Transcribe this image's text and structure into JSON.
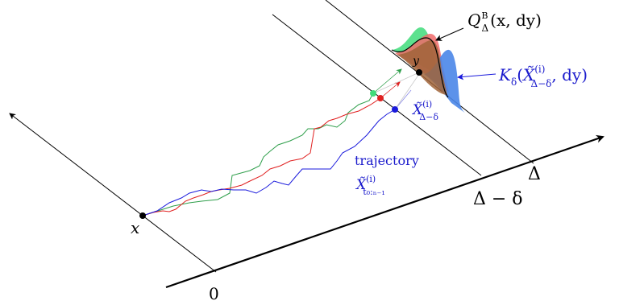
{
  "labels": {
    "origin": "0",
    "delta": "Δ",
    "delta_minus": "Δ − δ",
    "x_point": "x",
    "y_point": "y",
    "trajectory_word": "trajectory",
    "q_main": "Q",
    "q_sup": "B",
    "q_sub": "Δ",
    "q_args": "(x, dy)",
    "k_main": "K",
    "k_sub": "δ",
    "k_open": "(",
    "k_var": "X̃",
    "k_sup": "(i)",
    "k_var_sub": "Δ−δ",
    "k_close": ", dy)",
    "xt_var": "X̃",
    "xt_sup": "(i)",
    "xt_sub": "Δ−δ",
    "traj_var": "X̃",
    "traj_sup": "(i)",
    "traj_sub": "t₀:ₙ₋₁"
  },
  "colors": {
    "green": "#2e9e4a",
    "red": "#e02020",
    "blue": "#1a1adc",
    "label_blue": "#1a1acc",
    "green_fill": "#3fdc7a",
    "red_fill": "#f06a6a",
    "blue_fill": "#4a86e8",
    "brown_fill": "#a0643a"
  },
  "icons": {
    "points": "filled-circle-marker",
    "arrows": "arrow-head"
  }
}
